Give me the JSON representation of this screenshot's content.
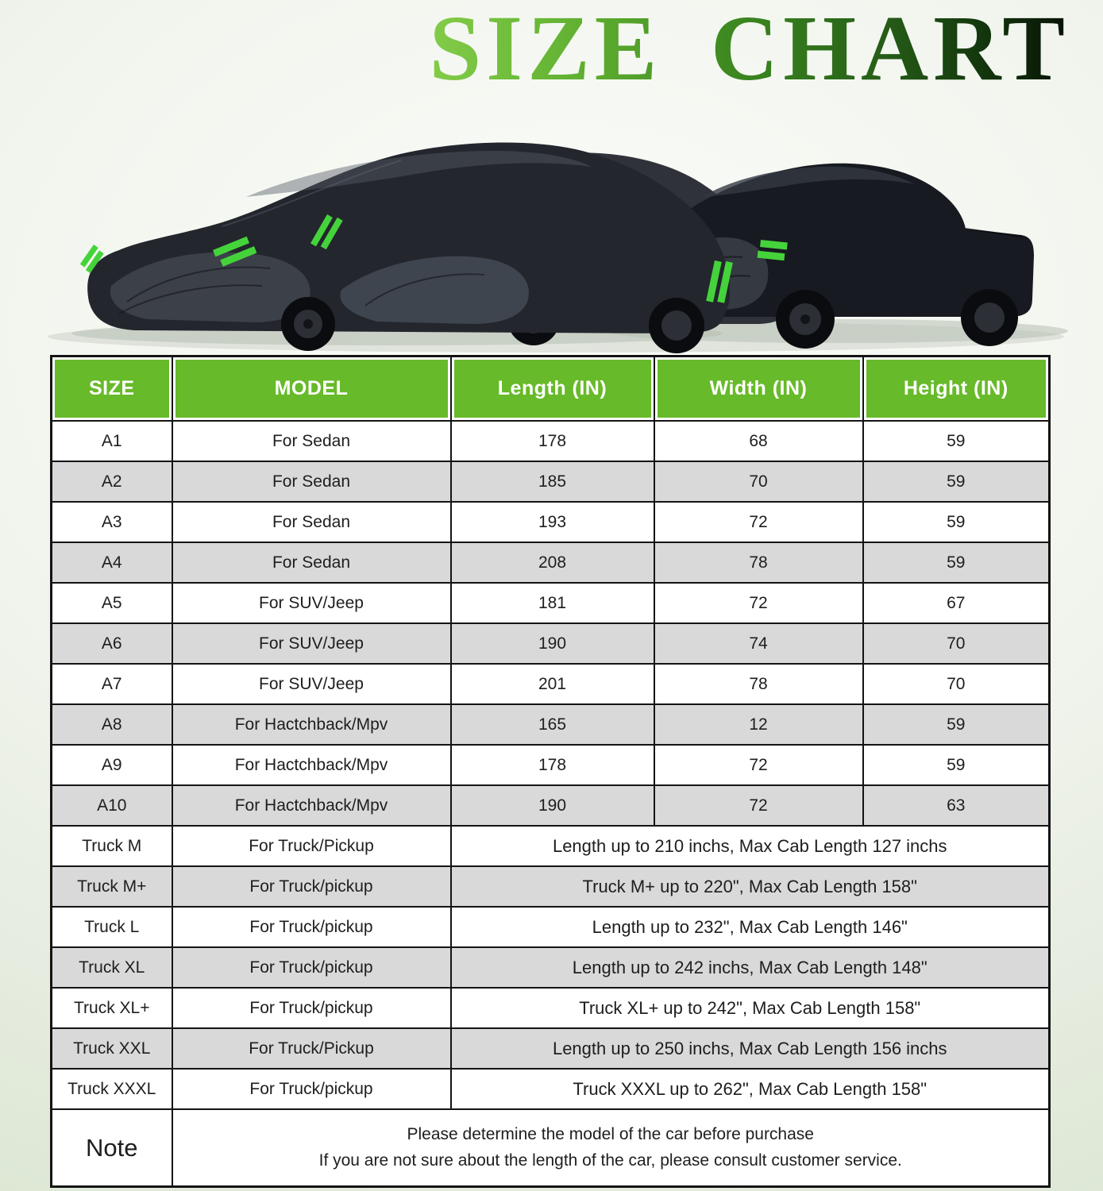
{
  "title": "SIZE CHART",
  "illustration": {
    "vehicles": [
      "sedan-with-cover",
      "suv-with-cover",
      "pickup-truck-with-cover"
    ],
    "cover_color": "#23262d",
    "accent_color": "#45d33b"
  },
  "table": {
    "headers": [
      "SIZE",
      "MODEL",
      "Length (IN)",
      "Width (IN)",
      "Height (IN)"
    ],
    "rows": [
      {
        "size": "A1",
        "model": "For Sedan",
        "length": "178",
        "width": "68",
        "height": "59"
      },
      {
        "size": "A2",
        "model": "For Sedan",
        "length": "185",
        "width": "70",
        "height": "59"
      },
      {
        "size": "A3",
        "model": "For Sedan",
        "length": "193",
        "width": "72",
        "height": "59"
      },
      {
        "size": "A4",
        "model": "For Sedan",
        "length": "208",
        "width": "78",
        "height": "59"
      },
      {
        "size": "A5",
        "model": "For SUV/Jeep",
        "length": "181",
        "width": "72",
        "height": "67"
      },
      {
        "size": "A6",
        "model": "For SUV/Jeep",
        "length": "190",
        "width": "74",
        "height": "70"
      },
      {
        "size": "A7",
        "model": "For SUV/Jeep",
        "length": "201",
        "width": "78",
        "height": "70"
      },
      {
        "size": "A8",
        "model": "For Hactchback/Mpv",
        "length": "165",
        "width": "12",
        "height": "59"
      },
      {
        "size": "A9",
        "model": "For Hactchback/Mpv",
        "length": "178",
        "width": "72",
        "height": "59"
      },
      {
        "size": "A10",
        "model": "For Hactchback/Mpv",
        "length": "190",
        "width": "72",
        "height": "63"
      },
      {
        "size": "Truck M",
        "model": "For Truck/Pickup",
        "span": "Length up to 210 inchs, Max Cab Length 127 inchs"
      },
      {
        "size": "Truck M+",
        "model": "For Truck/pickup",
        "span": "Truck M+ up to 220\", Max Cab Length 158\""
      },
      {
        "size": "Truck L",
        "model": "For Truck/pickup",
        "span": "Length  up to 232\", Max Cab Length 146\""
      },
      {
        "size": "Truck XL",
        "model": "For Truck/pickup",
        "span": "Length up to 242 inchs, Max Cab Length 148\""
      },
      {
        "size": "Truck XL+",
        "model": "For Truck/pickup",
        "span": "Truck XL+ up to 242\", Max Cab Length 158\""
      },
      {
        "size": "Truck XXL",
        "model": "For Truck/Pickup",
        "span": "Length up to 250 inchs, Max Cab Length 156 inchs"
      },
      {
        "size": "Truck XXXL",
        "model": "For Truck/pickup",
        "span": "Truck XXXL up to 262\", Max Cab Length 158\""
      }
    ],
    "note": {
      "label": "Note",
      "lines": [
        "Please determine the model of the car before purchase",
        "If you are not sure about the length of the car, please consult customer service."
      ]
    }
  },
  "colors": {
    "header_bg": "#67ba29",
    "header_text": "#ffffff",
    "row_alt_bg": "#d9d9d9",
    "border": "#141414",
    "accent_green": "#45d33b",
    "title_gradient": [
      "#83cc49",
      "#459424",
      "#071106"
    ]
  }
}
